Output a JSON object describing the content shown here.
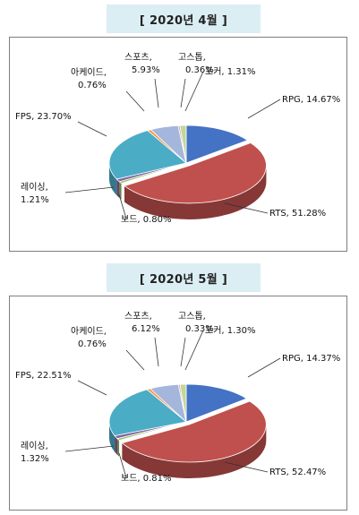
{
  "chart_data": [
    {
      "type": "pie",
      "title": "[ 2020년 4월 ]",
      "slices": [
        {
          "name": "RPG",
          "value": 14.67,
          "label": "RPG, 14.67%",
          "color": "#4472c4"
        },
        {
          "name": "RTS",
          "value": 51.28,
          "label": "RTS, 51.28%",
          "color": "#c0504d"
        },
        {
          "name": "보드",
          "value": 0.8,
          "label": "보드, 0.80%",
          "color": "#9bbb59"
        },
        {
          "name": "레이싱",
          "value": 1.21,
          "label1": "레이싱,",
          "label2": "1.21%",
          "color": "#8064a2"
        },
        {
          "name": "FPS",
          "value": 23.7,
          "label": "FPS, 23.70%",
          "color": "#4bacc6"
        },
        {
          "name": "아케이드",
          "value": 0.76,
          "label1": "아케이드,",
          "label2": "0.76%",
          "color": "#f79646"
        },
        {
          "name": "스포츠",
          "value": 5.93,
          "label1": "스포츠,",
          "label2": "5.93%",
          "color": "#a5b6dd"
        },
        {
          "name": "고스톱",
          "value": 0.36,
          "label1": "고스톱,",
          "label2": "0.36%",
          "color": "#d99694"
        },
        {
          "name": "포커",
          "value": 1.31,
          "label": "포커, 1.31%",
          "color": "#c3d69b"
        }
      ]
    },
    {
      "type": "pie",
      "title": "[ 2020년 5월 ]",
      "slices": [
        {
          "name": "RPG",
          "value": 14.37,
          "label": "RPG, 14.37%",
          "color": "#4472c4"
        },
        {
          "name": "RTS",
          "value": 52.47,
          "label": "RTS, 52.47%",
          "color": "#c0504d"
        },
        {
          "name": "보드",
          "value": 0.81,
          "label": "보드, 0.81%",
          "color": "#9bbb59"
        },
        {
          "name": "레이싱",
          "value": 1.32,
          "label1": "레이싱,",
          "label2": "1.32%",
          "color": "#8064a2"
        },
        {
          "name": "FPS",
          "value": 22.51,
          "label": "FPS, 22.51%",
          "color": "#4bacc6"
        },
        {
          "name": "아케이드",
          "value": 0.76,
          "label1": "아케이드,",
          "label2": "0.76%",
          "color": "#f79646"
        },
        {
          "name": "스포츠",
          "value": 6.12,
          "label1": "스포츠,",
          "label2": "6.12%",
          "color": "#a5b6dd"
        },
        {
          "name": "고스톱",
          "value": 0.33,
          "label1": "고스톱,",
          "label2": "0.33%",
          "color": "#d99694"
        },
        {
          "name": "포커",
          "value": 1.3,
          "label": "포커, 1.30%",
          "color": "#c3d69b"
        }
      ]
    }
  ]
}
